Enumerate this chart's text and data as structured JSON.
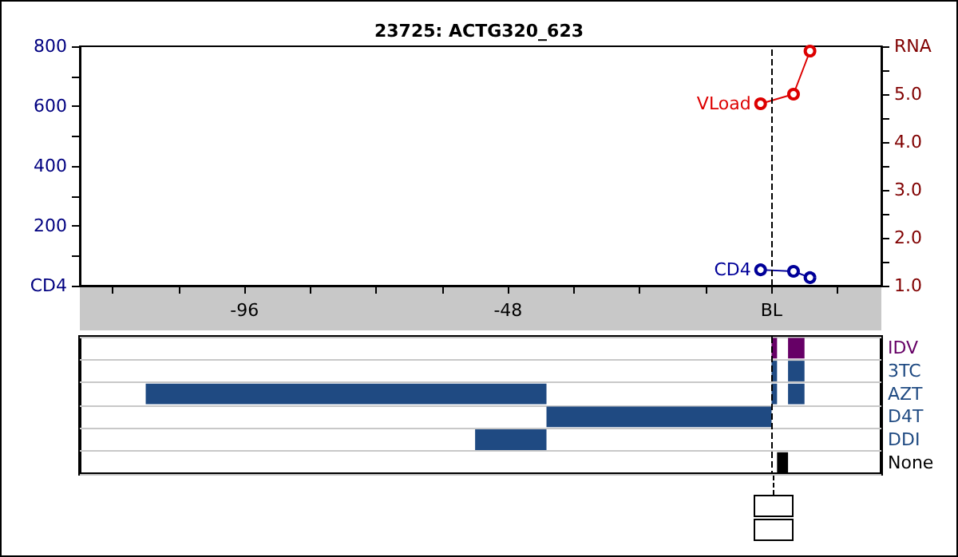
{
  "chart_data": [
    {
      "type": "line",
      "title": "23725: ACTG320_623",
      "xlim": [
        -126,
        20
      ],
      "xticks": [
        {
          "value": -120,
          "label": null
        },
        {
          "value": -108,
          "label": null
        },
        -96,
        {
          "value": -84,
          "label": null
        },
        {
          "value": -72,
          "label": null
        },
        {
          "value": -60,
          "label": null
        },
        -48,
        {
          "value": -36,
          "label": null
        },
        {
          "value": -24,
          "label": null
        },
        {
          "value": -12,
          "label": null
        },
        {
          "value": 0,
          "label": "BL"
        },
        {
          "value": 12,
          "label": null
        }
      ],
      "ylim": [
        0,
        800
      ],
      "yticks": [
        {
          "value": 0,
          "label": "CD4"
        },
        {
          "value": 100,
          "label": null
        },
        200,
        {
          "value": 300,
          "label": null
        },
        400,
        {
          "value": 500,
          "label": null
        },
        600,
        {
          "value": 700,
          "label": null
        },
        800
      ],
      "y2lim": [
        1,
        6
      ],
      "y2ticks": [
        {
          "value": 1,
          "label": "1.0"
        },
        {
          "value": 1.5,
          "label": null
        },
        {
          "value": 2,
          "label": "2.0"
        },
        {
          "value": 2.5,
          "label": null
        },
        {
          "value": 3,
          "label": "3.0"
        },
        {
          "value": 3.5,
          "label": null
        },
        {
          "value": 4,
          "label": "4.0"
        },
        {
          "value": 4.5,
          "label": null
        },
        {
          "value": 5,
          "label": "5.0"
        },
        {
          "value": 5.5,
          "label": null
        },
        {
          "value": 6,
          "label": "RNA"
        }
      ],
      "marker": "circle",
      "series": [
        {
          "name": "CD4",
          "color": "#000099",
          "x": [
            -2,
            4,
            7
          ],
          "values": [
            53,
            48,
            27
          ]
        },
        {
          "name": "VLoad",
          "color": "#dd0000",
          "axis": "y2",
          "x": [
            -2,
            4,
            7
          ],
          "values": [
            4.8,
            5.0,
            5.9
          ]
        }
      ],
      "ref_lines": [
        {
          "axis": "x",
          "value": 0,
          "label": null,
          "color": "#000000",
          "line_style": "dashed"
        }
      ]
    },
    {
      "type": "bar",
      "orientation": "horizontal",
      "xlim": [
        -126,
        20
      ],
      "tick_labels": "y",
      "grid": "y",
      "categories": [
        "IDV",
        "3TC",
        "AZT",
        "D4T",
        "DDI",
        "None"
      ],
      "series": [
        {
          "values": [
            1,
            1,
            73,
            41,
            13,
            2
          ],
          "base": [
            0,
            0,
            -114,
            -41,
            -54,
            1
          ],
          "colors": [
            "#660066",
            "#1f4a82",
            "#1f4a82",
            "#1f4a82",
            "#1f4a82",
            "#000000"
          ]
        },
        {
          "values": [
            3,
            3,
            1,
            null,
            null,
            null
          ],
          "base": [
            3,
            3,
            0,
            null,
            null,
            null
          ],
          "colors": [
            "#660066",
            "#1f4a82",
            "#1f4a82",
            null,
            null,
            null
          ]
        },
        {
          "values": [
            null,
            null,
            3,
            null,
            null,
            null
          ],
          "base": [
            null,
            null,
            3,
            null,
            null,
            null
          ],
          "colors": [
            null,
            null,
            "#1f4a82",
            null,
            null,
            null
          ]
        }
      ],
      "ref_lines": [
        {
          "axis": "x",
          "value": 0,
          "label": null,
          "color": "#000000",
          "line_style": "dashed"
        }
      ]
    }
  ]
}
